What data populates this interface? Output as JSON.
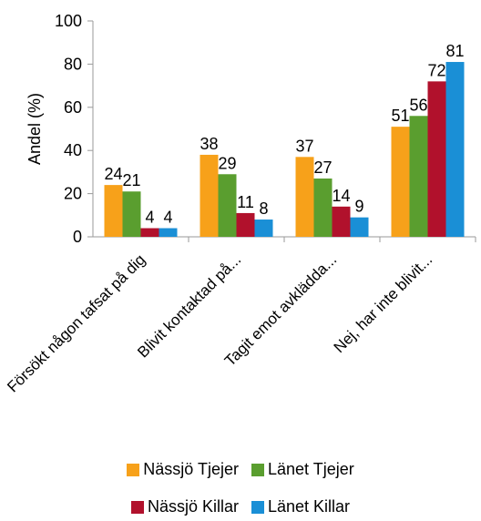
{
  "chart_data": {
    "type": "bar",
    "categories": [
      "Försökt någon tafsat på dig",
      "Blivit kontaktad på...",
      "Tagit emot avklädda...",
      "Nej, har inte blivit..."
    ],
    "series": [
      {
        "name": "Nässjö Tjejer",
        "values": [
          24,
          38,
          37,
          51
        ],
        "color": "#F7A11A"
      },
      {
        "name": "Länet Tjejer",
        "values": [
          21,
          29,
          27,
          56
        ],
        "color": "#5A9E2F"
      },
      {
        "name": "Nässjö Killar",
        "values": [
          4,
          11,
          14,
          72
        ],
        "color": "#B1112C"
      },
      {
        "name": "Länet Killar",
        "values": [
          4,
          8,
          9,
          81
        ],
        "color": "#1A8FD6"
      }
    ],
    "ylabel": "Andel (%)",
    "ylim": [
      0,
      100
    ],
    "yticks": [
      0,
      20,
      40,
      60,
      80,
      100
    ],
    "grid": false,
    "legend_position": "bottom"
  }
}
